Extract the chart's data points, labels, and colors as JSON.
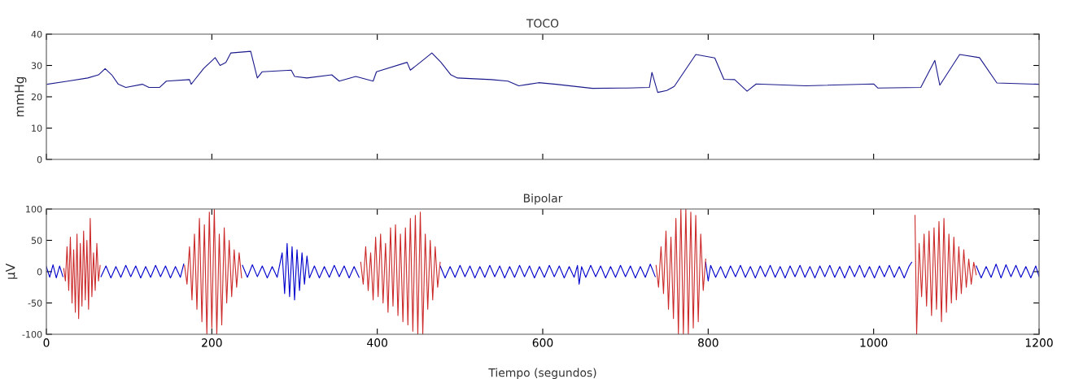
{
  "chart_data": [
    {
      "type": "line",
      "title": "TOCO",
      "ylabel": "mmHg",
      "xlim": [
        0,
        1200
      ],
      "xticks": [
        0,
        200,
        400,
        600,
        800,
        1000,
        1200
      ],
      "ylim": [
        0,
        40
      ],
      "yticks": [
        0,
        10,
        20,
        30,
        40
      ],
      "tick_labels": "y",
      "series": [
        {
          "color": "#1a1a8c",
          "x": [
            1,
            26,
            50,
            63,
            71,
            79,
            87,
            96,
            116,
            124,
            137,
            145,
            173,
            175,
            178,
            190,
            204,
            210,
            217,
            223,
            247,
            255,
            261,
            296,
            300,
            315,
            345,
            354,
            374,
            395,
            399,
            436,
            440,
            452,
            466,
            477,
            489,
            497,
            538,
            558,
            571,
            583,
            595,
            616,
            660,
            702,
            729,
            732,
            739,
            750,
            759,
            785,
            808,
            819,
            832,
            847,
            858,
            918,
            1000,
            1005,
            1057,
            1074,
            1080,
            1104,
            1128,
            1149,
            1200
          ],
          "values": [
            24,
            25,
            26,
            27,
            29,
            27,
            24,
            23,
            24,
            23,
            23,
            25,
            25.5,
            24,
            25,
            29,
            32.5,
            30,
            31,
            34,
            34.5,
            26,
            28,
            28.5,
            26.5,
            26,
            27,
            25,
            26.5,
            25,
            28,
            31,
            28.5,
            31,
            34,
            31,
            27,
            26,
            25.5,
            25,
            23.5,
            24,
            24.5,
            24,
            22.7,
            22.8,
            23,
            27.8,
            21.4,
            22,
            23.3,
            33.5,
            32.4,
            25.6,
            25.5,
            21.8,
            24.1,
            23.5,
            24.1,
            22.8,
            23,
            31.6,
            23.7,
            33.5,
            32.5,
            24.4,
            24
          ]
        }
      ]
    },
    {
      "type": "line",
      "title": "Bipolar",
      "ylabel": "μV",
      "xlabel": "Tiempo (segundos)",
      "xlim": [
        0,
        1200
      ],
      "xticks": [
        0,
        200,
        400,
        600,
        800,
        1000,
        1200
      ],
      "ylim": [
        -100,
        100
      ],
      "yticks": [
        -100,
        -50,
        0,
        50,
        100
      ],
      "series": [
        {
          "color": "#0000cc",
          "x": [
            0,
            4,
            8,
            12,
            16,
            20,
            22,
            66,
            72,
            78,
            84,
            90,
            96,
            102,
            108,
            114,
            120,
            126,
            132,
            138,
            144,
            150,
            156,
            162,
            166,
            168,
            237,
            243,
            249,
            255,
            261,
            267,
            273,
            279,
            285,
            288,
            291,
            294,
            297,
            300,
            303,
            306,
            309,
            312,
            315,
            318,
            324,
            330,
            336,
            342,
            348,
            354,
            360,
            366,
            372,
            378,
            380,
            476,
            482,
            488,
            494,
            500,
            506,
            512,
            518,
            524,
            530,
            536,
            542,
            548,
            554,
            560,
            566,
            572,
            578,
            584,
            590,
            596,
            602,
            608,
            614,
            620,
            626,
            632,
            638,
            642,
            644,
            647,
            652,
            658,
            664,
            670,
            676,
            682,
            688,
            694,
            700,
            706,
            712,
            718,
            724,
            730,
            736,
            737,
            797,
            800,
            803,
            809,
            815,
            821,
            827,
            833,
            839,
            845,
            851,
            857,
            863,
            869,
            875,
            881,
            887,
            893,
            899,
            905,
            911,
            917,
            923,
            929,
            935,
            941,
            947,
            953,
            959,
            965,
            971,
            977,
            983,
            989,
            995,
            1001,
            1007,
            1013,
            1019,
            1025,
            1031,
            1037,
            1043,
            1046,
            1050,
            1124,
            1130,
            1136,
            1142,
            1148,
            1154,
            1160,
            1166,
            1172,
            1178,
            1184,
            1190,
            1196,
            1200
          ],
          "values": [
            8,
            -9,
            11,
            -10,
            9,
            -8,
            null,
            -8,
            9,
            -10,
            8,
            -9,
            10,
            -8,
            9,
            -10,
            8,
            -9,
            10,
            -8,
            9,
            -10,
            8,
            -9,
            12,
            null,
            10,
            -9,
            11,
            -8,
            9,
            -10,
            8,
            -9,
            30,
            -35,
            45,
            -40,
            40,
            -45,
            35,
            -30,
            30,
            -20,
            25,
            -10,
            9,
            -10,
            8,
            -9,
            10,
            -8,
            9,
            -10,
            8,
            -9,
            null,
            9,
            -10,
            8,
            -9,
            10,
            -8,
            9,
            -10,
            8,
            -9,
            10,
            -8,
            9,
            -10,
            8,
            -9,
            10,
            -8,
            9,
            -10,
            8,
            -9,
            10,
            -8,
            9,
            -10,
            8,
            -9,
            10,
            -20,
            8,
            -9,
            10,
            -8,
            9,
            -10,
            8,
            -9,
            10,
            -8,
            9,
            -10,
            8,
            -9,
            12,
            -8,
            null,
            15,
            -15,
            10,
            -9,
            8,
            -10,
            9,
            -8,
            10,
            -9,
            8,
            -10,
            9,
            -8,
            10,
            -9,
            8,
            -10,
            9,
            -8,
            10,
            -9,
            8,
            -10,
            9,
            -8,
            10,
            -9,
            8,
            -10,
            9,
            -8,
            10,
            -9,
            8,
            -10,
            9,
            -8,
            10,
            -9,
            8,
            -10,
            9,
            15,
            null,
            9,
            -10,
            8,
            -9,
            12,
            -10,
            11,
            -8,
            10,
            -9,
            8,
            -10,
            9,
            -8
          ]
        },
        {
          "color": "#cc2a2a",
          "x": [
            21,
            23,
            25,
            27,
            29,
            31,
            33,
            35,
            37,
            39,
            41,
            43,
            45,
            47,
            49,
            51,
            53,
            55,
            57,
            59,
            61,
            63,
            65,
            66,
            167,
            170,
            173,
            176,
            179,
            182,
            185,
            188,
            191,
            194,
            197,
            200,
            203,
            206,
            209,
            212,
            215,
            218,
            221,
            224,
            227,
            230,
            233,
            236,
            237,
            380,
            383,
            386,
            389,
            392,
            395,
            398,
            401,
            404,
            407,
            410,
            413,
            416,
            419,
            422,
            425,
            428,
            431,
            434,
            437,
            440,
            443,
            446,
            449,
            452,
            455,
            458,
            461,
            464,
            467,
            470,
            473,
            476,
            477,
            737,
            740,
            743,
            746,
            749,
            752,
            755,
            758,
            761,
            764,
            767,
            770,
            773,
            776,
            779,
            782,
            785,
            788,
            791,
            794,
            797,
            798,
            1050,
            1052,
            1055,
            1058,
            1061,
            1064,
            1067,
            1070,
            1073,
            1076,
            1079,
            1082,
            1085,
            1088,
            1091,
            1094,
            1097,
            1100,
            1103,
            1106,
            1109,
            1112,
            1115,
            1118,
            1121,
            1124
          ],
          "values": [
            5,
            -15,
            40,
            -30,
            55,
            -50,
            35,
            -65,
            60,
            -75,
            45,
            -55,
            65,
            -45,
            50,
            -60,
            85,
            -40,
            30,
            -30,
            45,
            -15,
            10,
            null,
            10,
            -20,
            40,
            -45,
            60,
            -60,
            85,
            -80,
            75,
            -100,
            95,
            -90,
            100,
            -100,
            60,
            -85,
            70,
            -50,
            50,
            -40,
            35,
            -25,
            30,
            -10,
            null,
            15,
            -20,
            40,
            -30,
            30,
            -45,
            55,
            -40,
            60,
            -50,
            45,
            -65,
            70,
            -55,
            75,
            -70,
            60,
            -80,
            70,
            -85,
            85,
            -95,
            90,
            -100,
            95,
            -100,
            60,
            -60,
            50,
            -45,
            40,
            -25,
            15,
            null,
            10,
            -25,
            40,
            -35,
            65,
            -60,
            55,
            -75,
            85,
            -100,
            100,
            -100,
            100,
            -100,
            95,
            -90,
            90,
            -80,
            60,
            -30,
            20,
            null,
            90,
            -100,
            45,
            -40,
            60,
            -55,
            65,
            -70,
            70,
            -60,
            80,
            -80,
            85,
            -65,
            60,
            -50,
            55,
            -45,
            40,
            -35,
            35,
            -25,
            20,
            -20,
            15,
            -5
          ]
        }
      ]
    }
  ]
}
